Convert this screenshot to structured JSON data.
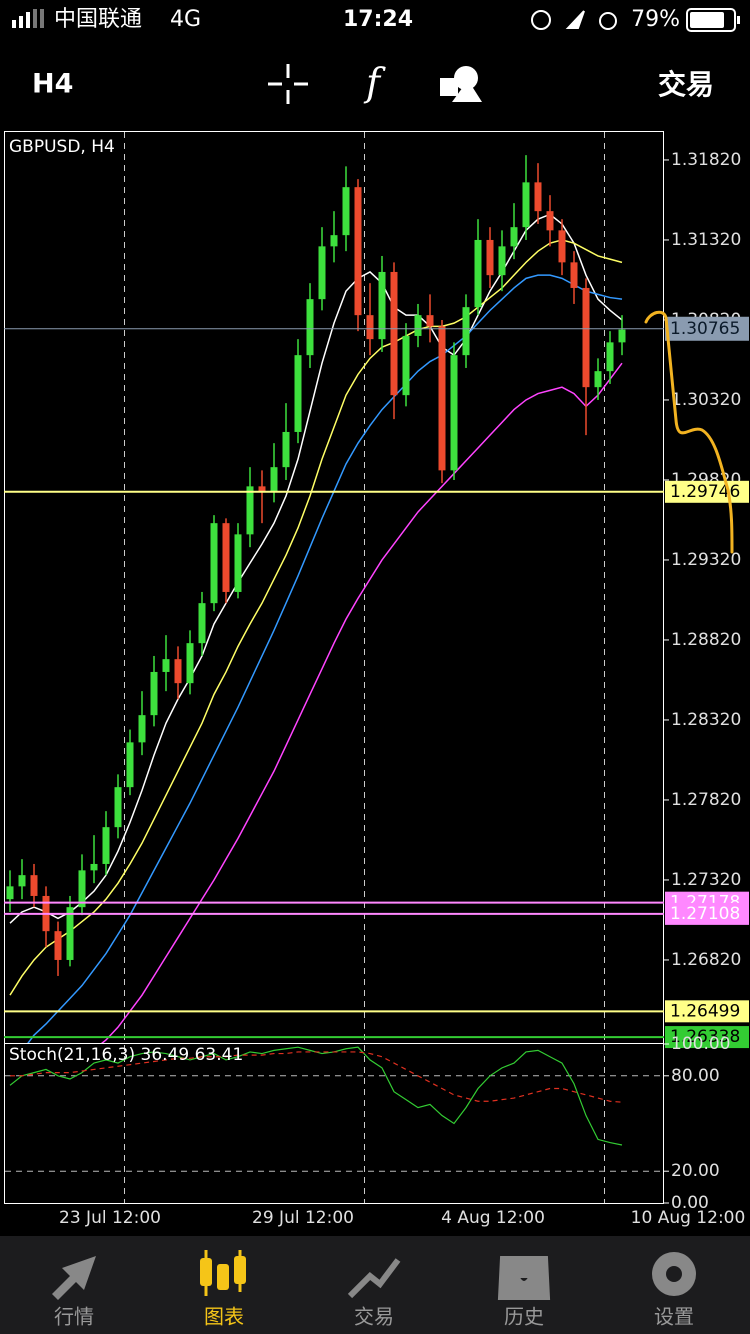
{
  "status_bar": {
    "carrier": "中国联通",
    "network": "4G",
    "time": "17:24",
    "battery": "79%"
  },
  "toolbar": {
    "timeframe": "H4",
    "action": "交易"
  },
  "chart_data": {
    "type": "candlestick",
    "title": "GBPUSD, H4",
    "bull_color": "#3ee03e",
    "bear_color": "#ec4a2e",
    "ylim": [
      1.26301,
      1.32001
    ],
    "yticks": [
      {
        "value": 1.3182,
        "label": "1.31820"
      },
      {
        "value": 1.3132,
        "label": "1.31320"
      },
      {
        "value": 1.3082,
        "label": "1.30820"
      },
      {
        "value": 1.3032,
        "label": "1.30320"
      },
      {
        "value": 1.2982,
        "label": "1.29820"
      },
      {
        "value": 1.2932,
        "label": "1.29320"
      },
      {
        "value": 1.2882,
        "label": "1.28820"
      },
      {
        "value": 1.2832,
        "label": "1.28320"
      },
      {
        "value": 1.2782,
        "label": "1.27820"
      },
      {
        "value": 1.2732,
        "label": "1.27320"
      },
      {
        "value": 1.2682,
        "label": "1.26820"
      }
    ],
    "x_labels": [
      "23 Jul 12:00",
      "29 Jul 12:00",
      "4 Aug 12:00",
      "10 Aug 12:00"
    ],
    "ohlc": [
      [
        1.272,
        1.2738,
        1.2712,
        1.2728
      ],
      [
        1.2728,
        1.2745,
        1.272,
        1.2735
      ],
      [
        1.2735,
        1.2742,
        1.2715,
        1.2722
      ],
      [
        1.2722,
        1.2728,
        1.269,
        1.27
      ],
      [
        1.27,
        1.2706,
        1.2672,
        1.2682
      ],
      [
        1.2682,
        1.2722,
        1.2678,
        1.2715
      ],
      [
        1.2715,
        1.2748,
        1.271,
        1.2738
      ],
      [
        1.2738,
        1.276,
        1.273,
        1.2742
      ],
      [
        1.2742,
        1.2775,
        1.2735,
        1.2765
      ],
      [
        1.2765,
        1.2798,
        1.2758,
        1.279
      ],
      [
        1.279,
        1.2826,
        1.2785,
        1.2818
      ],
      [
        1.2818,
        1.285,
        1.281,
        1.2835
      ],
      [
        1.2835,
        1.2872,
        1.2828,
        1.2862
      ],
      [
        1.2862,
        1.2885,
        1.285,
        1.287
      ],
      [
        1.287,
        1.2878,
        1.2845,
        1.2855
      ],
      [
        1.2855,
        1.2888,
        1.2848,
        1.288
      ],
      [
        1.288,
        1.2912,
        1.2872,
        1.2905
      ],
      [
        1.2905,
        1.296,
        1.29,
        1.2955
      ],
      [
        1.2955,
        1.2958,
        1.2905,
        1.2912
      ],
      [
        1.2912,
        1.2955,
        1.2908,
        1.2948
      ],
      [
        1.2948,
        1.299,
        1.294,
        1.2978
      ],
      [
        1.2978,
        1.2988,
        1.2955,
        1.2975
      ],
      [
        1.2975,
        1.3005,
        1.2968,
        1.299
      ],
      [
        1.299,
        1.303,
        1.2982,
        1.3012
      ],
      [
        1.3012,
        1.307,
        1.3005,
        1.306
      ],
      [
        1.306,
        1.3105,
        1.3052,
        1.3095
      ],
      [
        1.3095,
        1.314,
        1.3088,
        1.3128
      ],
      [
        1.3128,
        1.315,
        1.3118,
        1.3135
      ],
      [
        1.3135,
        1.3178,
        1.3125,
        1.3165
      ],
      [
        1.3165,
        1.317,
        1.3075,
        1.3085
      ],
      [
        1.3085,
        1.3105,
        1.306,
        1.307
      ],
      [
        1.307,
        1.3122,
        1.3062,
        1.3112
      ],
      [
        1.3112,
        1.3118,
        1.302,
        1.3035
      ],
      [
        1.3035,
        1.308,
        1.3028,
        1.3072
      ],
      [
        1.3072,
        1.3092,
        1.3065,
        1.3085
      ],
      [
        1.3085,
        1.3098,
        1.3068,
        1.3078
      ],
      [
        1.3078,
        1.3082,
        1.298,
        1.2988
      ],
      [
        1.2988,
        1.3068,
        1.2982,
        1.306
      ],
      [
        1.306,
        1.3098,
        1.3052,
        1.309
      ],
      [
        1.309,
        1.3145,
        1.3085,
        1.3132
      ],
      [
        1.3132,
        1.314,
        1.3102,
        1.311
      ],
      [
        1.311,
        1.3138,
        1.31,
        1.3128
      ],
      [
        1.3128,
        1.3155,
        1.312,
        1.314
      ],
      [
        1.314,
        1.3185,
        1.3132,
        1.3168
      ],
      [
        1.3168,
        1.318,
        1.3142,
        1.315
      ],
      [
        1.315,
        1.316,
        1.3128,
        1.3138
      ],
      [
        1.3138,
        1.3145,
        1.311,
        1.3118
      ],
      [
        1.3118,
        1.3125,
        1.3092,
        1.3102
      ],
      [
        1.3102,
        1.3108,
        1.301,
        1.304
      ],
      [
        1.304,
        1.3058,
        1.3032,
        1.305
      ],
      [
        1.305,
        1.3075,
        1.3042,
        1.3068
      ],
      [
        1.3068,
        1.3085,
        1.306,
        1.3076
      ]
    ],
    "moving_averages": [
      {
        "color": "#ffffff",
        "values": [
          1.2705,
          1.2712,
          1.2715,
          1.2712,
          1.2708,
          1.2712,
          1.2718,
          1.2725,
          1.2735,
          1.275,
          1.2768,
          1.2788,
          1.281,
          1.283,
          1.2845,
          1.2858,
          1.2872,
          1.2892,
          1.2905,
          1.2918,
          1.293,
          1.2942,
          1.2955,
          1.2972,
          1.2995,
          1.3025,
          1.3055,
          1.308,
          1.31,
          1.3108,
          1.3112,
          1.3105,
          1.309,
          1.3085,
          1.3085,
          1.3078,
          1.3065,
          1.306,
          1.307,
          1.3085,
          1.31,
          1.3112,
          1.3125,
          1.3138,
          1.3145,
          1.3148,
          1.3142,
          1.313,
          1.311,
          1.3095,
          1.3088,
          1.3082
        ]
      },
      {
        "color": "#ffff66",
        "values": [
          1.266,
          1.2672,
          1.2682,
          1.269,
          1.2695,
          1.27,
          1.2706,
          1.2712,
          1.272,
          1.273,
          1.2742,
          1.2755,
          1.277,
          1.2785,
          1.28,
          1.2815,
          1.283,
          1.2848,
          1.2862,
          1.2878,
          1.2892,
          1.2905,
          1.292,
          1.2935,
          1.2952,
          1.2972,
          1.2995,
          1.3015,
          1.3035,
          1.3048,
          1.3058,
          1.3065,
          1.3068,
          1.3072,
          1.3076,
          1.3078,
          1.3078,
          1.308,
          1.3084,
          1.309,
          1.3096,
          1.3102,
          1.311,
          1.3118,
          1.3125,
          1.313,
          1.3132,
          1.313,
          1.3126,
          1.3122,
          1.312,
          1.3118
        ]
      },
      {
        "color": "#3399ff",
        "values": [
          1.2615,
          1.2625,
          1.2635,
          1.2642,
          1.265,
          1.2658,
          1.2666,
          1.2676,
          1.2686,
          1.2698,
          1.271,
          1.2724,
          1.2738,
          1.2752,
          1.2766,
          1.278,
          1.2795,
          1.281,
          1.2825,
          1.284,
          1.2856,
          1.2872,
          1.2888,
          1.2905,
          1.2922,
          1.294,
          1.2958,
          1.2975,
          1.2992,
          1.3005,
          1.3016,
          1.3026,
          1.3034,
          1.3042,
          1.305,
          1.3056,
          1.306,
          1.3066,
          1.3072,
          1.308,
          1.3088,
          1.3095,
          1.3102,
          1.3108,
          1.311,
          1.311,
          1.3108,
          1.3104,
          1.31,
          1.3098,
          1.3096,
          1.3095
        ]
      },
      {
        "color": "#ff44ff",
        "values": [
          1.2575,
          1.2582,
          1.259,
          1.2598,
          1.2606,
          1.2614,
          1.262,
          1.2626,
          1.2632,
          1.264,
          1.265,
          1.266,
          1.2672,
          1.2684,
          1.2696,
          1.2708,
          1.272,
          1.2732,
          1.2745,
          1.2758,
          1.2772,
          1.2786,
          1.28,
          1.2816,
          1.2832,
          1.2848,
          1.2864,
          1.288,
          1.2895,
          1.2908,
          1.292,
          1.2932,
          1.2942,
          1.2952,
          1.2962,
          1.297,
          1.2978,
          1.2986,
          1.2994,
          1.3002,
          1.301,
          1.3018,
          1.3026,
          1.3032,
          1.3036,
          1.3038,
          1.304,
          1.3036,
          1.3028,
          1.3035,
          1.3045,
          1.3055
        ]
      }
    ],
    "levels": [
      {
        "value": 1.29746,
        "label": "1.29746",
        "color": "#ffff88",
        "text_color": "#000000"
      },
      {
        "value": 1.27178,
        "label": "1.27178",
        "color": "#ff88ff",
        "text_color": "#ffffff"
      },
      {
        "value": 1.27108,
        "label": "1.27108",
        "color": "#ff88ff",
        "text_color": "#ffffff"
      },
      {
        "value": 1.26499,
        "label": "1.26499",
        "color": "#ffff88",
        "text_color": "#000000"
      },
      {
        "value": 1.26338,
        "label": "1.26338",
        "color": "#33cc33",
        "text_color": "#000000"
      }
    ],
    "current_price": {
      "value": 1.30765,
      "label": "1.30765",
      "color": "#8a9bb0",
      "text_color": "#0b1a2a"
    },
    "stochastic": {
      "title": "Stoch(21,16,3) 36.49 63.41",
      "ylim": [
        0,
        100
      ],
      "yticks": [
        {
          "value": 100,
          "label": "100.00"
        },
        {
          "value": 80,
          "label": "80.00"
        },
        {
          "value": 20,
          "label": "20.00"
        },
        {
          "value": 0,
          "label": "0.00"
        }
      ],
      "main": {
        "color": "#33cc33",
        "values": [
          74,
          80,
          82,
          84,
          80,
          78,
          82,
          88,
          90,
          88,
          92,
          94,
          95,
          94,
          92,
          90,
          92,
          94,
          90,
          92,
          95,
          94,
          96,
          97,
          98,
          96,
          94,
          95,
          97,
          98,
          90,
          85,
          70,
          65,
          60,
          62,
          55,
          50,
          60,
          72,
          80,
          85,
          88,
          95,
          96,
          92,
          88,
          75,
          55,
          40,
          38,
          36.49
        ]
      },
      "signal": {
        "color": "#e03020",
        "values": [
          80,
          80,
          81,
          82,
          82,
          82,
          83,
          84,
          85,
          86,
          87,
          88,
          89,
          90,
          91,
          91,
          92,
          92,
          92,
          93,
          93,
          93,
          94,
          94,
          95,
          95,
          95,
          95,
          95,
          95,
          94,
          92,
          88,
          84,
          80,
          76,
          72,
          68,
          66,
          64,
          64,
          65,
          66,
          68,
          70,
          72,
          72,
          70,
          68,
          66,
          64,
          63.41
        ]
      }
    }
  },
  "tab_bar": {
    "tabs": [
      "行情",
      "图表",
      "交易",
      "历史",
      "设置"
    ],
    "active": 1
  }
}
